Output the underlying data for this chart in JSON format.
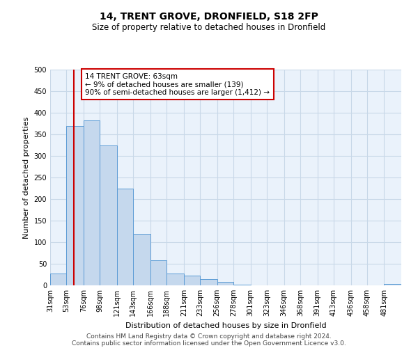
{
  "title": "14, TRENT GROVE, DRONFIELD, S18 2FP",
  "subtitle": "Size of property relative to detached houses in Dronfield",
  "xlabel": "Distribution of detached houses by size in Dronfield",
  "ylabel": "Number of detached properties",
  "bar_labels": [
    "31sqm",
    "53sqm",
    "76sqm",
    "98sqm",
    "121sqm",
    "143sqm",
    "166sqm",
    "188sqm",
    "211sqm",
    "233sqm",
    "256sqm",
    "278sqm",
    "301sqm",
    "323sqm",
    "346sqm",
    "368sqm",
    "391sqm",
    "413sqm",
    "436sqm",
    "458sqm",
    "481sqm"
  ],
  "bar_values": [
    27,
    370,
    383,
    325,
    225,
    120,
    58,
    27,
    22,
    15,
    8,
    1,
    0,
    0,
    0,
    0,
    0,
    0,
    0,
    0,
    3
  ],
  "bar_color": "#c5d8ed",
  "bar_edge_color": "#5b9bd5",
  "ylim": [
    0,
    500
  ],
  "yticks": [
    0,
    50,
    100,
    150,
    200,
    250,
    300,
    350,
    400,
    450,
    500
  ],
  "property_line_x": 63,
  "property_line_color": "#cc0000",
  "annotation_title": "14 TRENT GROVE: 63sqm",
  "annotation_line1": "← 9% of detached houses are smaller (139)",
  "annotation_line2": "90% of semi-detached houses are larger (1,412) →",
  "annotation_box_color": "#cc0000",
  "footnote1": "Contains HM Land Registry data © Crown copyright and database right 2024.",
  "footnote2": "Contains public sector information licensed under the Open Government Licence v3.0.",
  "bin_edges": [
    31,
    53,
    76,
    98,
    121,
    143,
    166,
    188,
    211,
    233,
    256,
    278,
    301,
    323,
    346,
    368,
    391,
    413,
    436,
    458,
    481,
    504
  ],
  "grid_color": "#c8d8e8",
  "background_color": "#eaf2fb",
  "title_fontsize": 10,
  "subtitle_fontsize": 8.5,
  "ylabel_fontsize": 8,
  "xlabel_fontsize": 8,
  "annotation_fontsize": 7.5,
  "tick_fontsize": 7,
  "footnote_fontsize": 6.5
}
